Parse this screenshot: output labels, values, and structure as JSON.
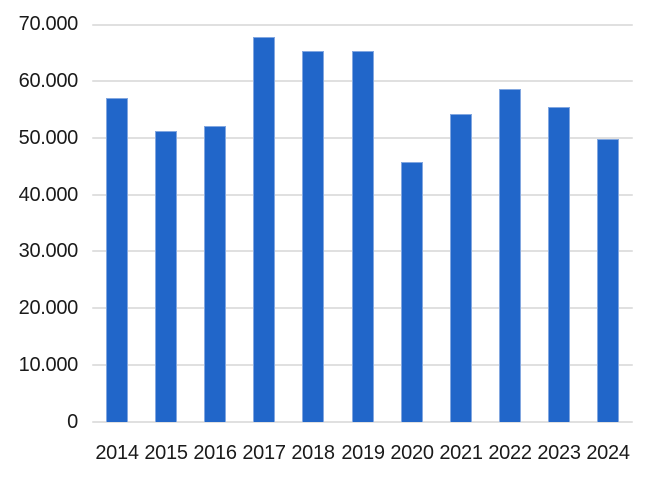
{
  "chart_data": {
    "type": "bar",
    "title": "",
    "xlabel": "",
    "ylabel": "",
    "categories": [
      "2014",
      "2015",
      "2016",
      "2017",
      "2018",
      "2019",
      "2020",
      "2021",
      "2022",
      "2023",
      "2024"
    ],
    "values": [
      56900,
      51100,
      52100,
      67800,
      65200,
      65200,
      45800,
      54100,
      58600,
      55400,
      49800
    ],
    "ylim": [
      0,
      70000
    ],
    "y_tick_interval": 10000,
    "y_tick_labels": [
      "0",
      "10.000",
      "20.000",
      "30.000",
      "40.000",
      "50.000",
      "60.000",
      "70.000"
    ],
    "grid": true,
    "legend": "none",
    "colors": {
      "bar_fill": "#2166c9",
      "bar_border": "#82a7e0",
      "gridline": "#e0e0e0",
      "label_text": "#1a1a1a",
      "background": "#ffffff"
    }
  }
}
